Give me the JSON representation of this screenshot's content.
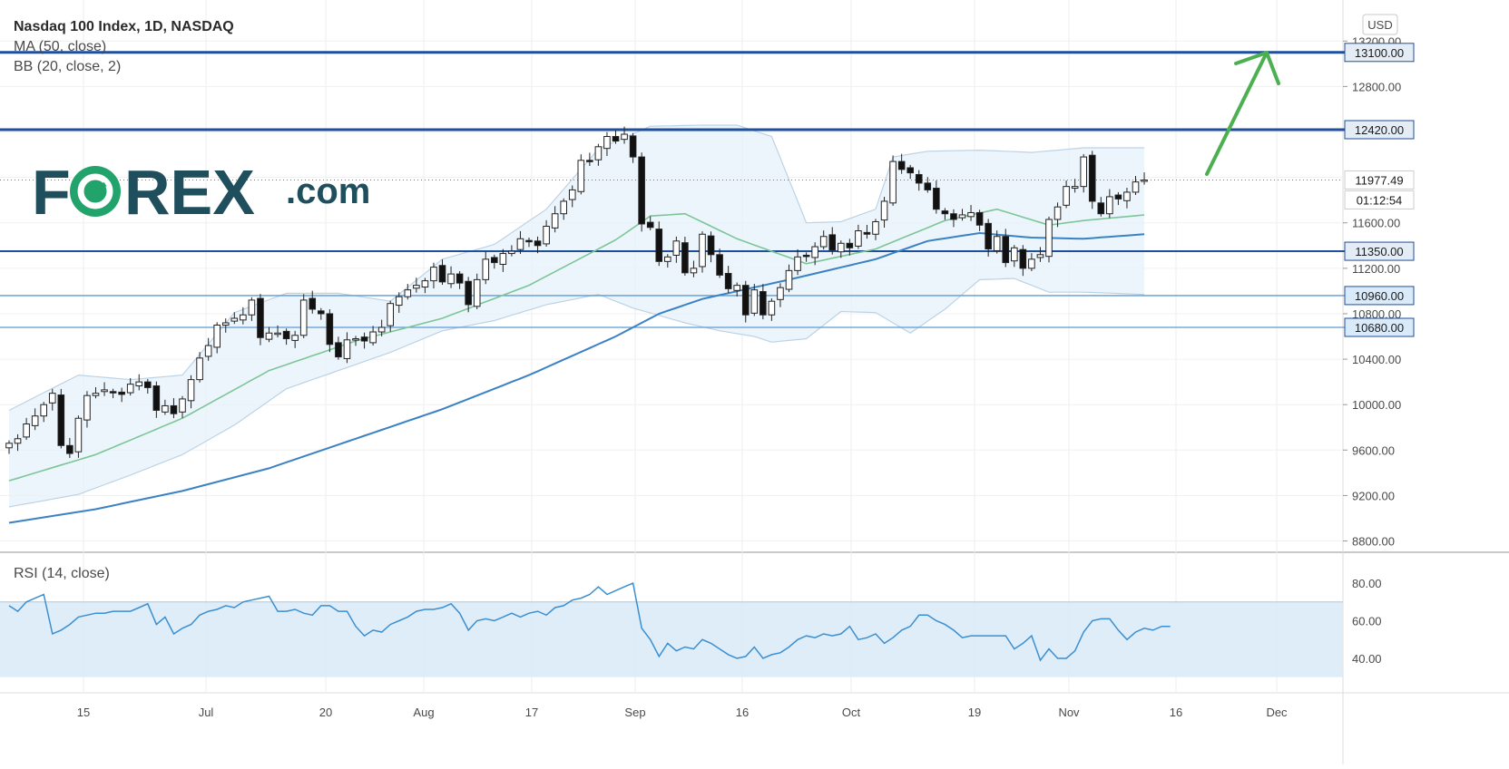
{
  "header": {
    "title": "Nasdaq 100 Index, 1D, NASDAQ",
    "indicator_ma": "MA (50, close)",
    "indicator_bb": "BB (20, close, 2)",
    "currency": "USD"
  },
  "logo": {
    "text": "FOREX.com"
  },
  "rsi": {
    "title": "RSI (14, close)",
    "yticks": [
      "80.00",
      "60.00",
      "40.00"
    ],
    "band": [
      30,
      70
    ],
    "values": [
      68,
      65,
      70,
      72,
      74,
      53,
      55,
      58,
      62,
      63,
      64,
      64,
      65,
      65,
      65,
      67,
      69,
      58,
      62,
      53,
      56,
      58,
      63,
      65,
      66,
      68,
      67,
      70,
      71,
      72,
      73,
      65,
      65,
      66,
      64,
      63,
      68,
      68,
      65,
      65,
      57,
      52,
      55,
      54,
      58,
      60,
      62,
      65,
      66,
      66,
      67,
      69,
      64,
      55,
      60,
      61,
      60,
      62,
      64,
      62,
      64,
      65,
      63,
      67,
      68,
      71,
      72,
      74,
      78,
      74,
      76,
      78,
      80,
      56,
      50,
      41,
      48,
      44,
      46,
      45,
      50,
      48,
      45,
      42,
      40,
      41,
      46,
      40,
      42,
      43,
      46,
      50,
      52,
      51,
      53,
      52,
      53,
      57,
      50,
      51,
      53,
      48,
      51,
      55,
      57,
      63,
      63,
      60,
      58,
      55,
      51,
      52,
      52,
      52,
      52,
      52,
      45,
      48,
      52,
      39,
      45,
      40,
      40,
      44,
      54,
      60,
      61,
      61,
      55,
      50,
      54,
      56,
      55,
      57,
      57
    ]
  },
  "chart_data": {
    "type": "candlestick",
    "title": "Nasdaq 100 Index, 1D, NASDAQ",
    "ylim": [
      8700,
      13350
    ],
    "yticks": [
      "13200.00",
      "12800.00",
      "12420.00",
      "11977.49",
      "11600.00",
      "11350.00",
      "11200.00",
      "10960.00",
      "10800.00",
      "10680.00",
      "10400.00",
      "10000.00",
      "9600.00",
      "9200.00",
      "8800.00"
    ],
    "xticks": [
      "15",
      "Jul",
      "20",
      "Aug",
      "17",
      "Sep",
      "16",
      "Oct",
      "19",
      "Nov",
      "16",
      "Dec"
    ],
    "last_price": "11977.49",
    "countdown": "01:12:54",
    "levels": [
      {
        "label": "13100.00",
        "value": 13100,
        "weight": "heavy"
      },
      {
        "label": "12420.00",
        "value": 12420,
        "weight": "heavy"
      },
      {
        "label": "11350.00",
        "value": 11350,
        "weight": "medium"
      },
      {
        "label": "10960.00",
        "value": 10960,
        "weight": "light"
      },
      {
        "label": "10680.00",
        "value": 10680,
        "weight": "light"
      }
    ],
    "close": [
      9660,
      9700,
      9830,
      9900,
      10000,
      10100,
      9640,
      9570,
      9880,
      10080,
      10100,
      10130,
      10110,
      10090,
      10180,
      10200,
      10150,
      9950,
      9990,
      9920,
      10050,
      10220,
      10410,
      10520,
      10700,
      10720,
      10760,
      10790,
      10920,
      10590,
      10630,
      10630,
      10580,
      10610,
      10920,
      10840,
      10800,
      10530,
      10420,
      10570,
      10580,
      10560,
      10640,
      10680,
      10890,
      10950,
      11010,
      11050,
      11090,
      11210,
      11080,
      11150,
      11070,
      10880,
      11100,
      11280,
      11250,
      11330,
      11350,
      11460,
      11440,
      11400,
      11570,
      11680,
      11790,
      11890,
      12150,
      12140,
      12270,
      12360,
      12320,
      12380,
      12180,
      11590,
      11560,
      11260,
      11300,
      11440,
      11160,
      11200,
      11500,
      11320,
      11140,
      11020,
      11050,
      10790,
      11010,
      10790,
      10910,
      11030,
      11180,
      11300,
      11310,
      11390,
      11480,
      11360,
      11420,
      11380,
      11530,
      11500,
      11610,
      11790,
      12140,
      12070,
      12040,
      11950,
      11890,
      11720,
      11680,
      11630,
      11670,
      11690,
      11580,
      11370,
      11480,
      11250,
      11380,
      11200,
      11280,
      11320,
      11630,
      11740,
      11920,
      11920,
      12180,
      11790,
      11680,
      11830,
      11810,
      11870,
      11960,
      11977
    ],
    "ma50_points": [
      [
        0,
        8960
      ],
      [
        10,
        9080
      ],
      [
        20,
        9240
      ],
      [
        30,
        9440
      ],
      [
        40,
        9700
      ],
      [
        50,
        9960
      ],
      [
        60,
        10260
      ],
      [
        70,
        10600
      ],
      [
        75,
        10800
      ],
      [
        80,
        10930
      ],
      [
        90,
        11100
      ],
      [
        100,
        11280
      ],
      [
        106,
        11440
      ],
      [
        112,
        11510
      ],
      [
        118,
        11470
      ],
      [
        124,
        11460
      ],
      [
        131,
        11500
      ]
    ],
    "ma20_points": [
      [
        0,
        9330
      ],
      [
        10,
        9560
      ],
      [
        20,
        9880
      ],
      [
        30,
        10300
      ],
      [
        40,
        10560
      ],
      [
        50,
        10760
      ],
      [
        60,
        11050
      ],
      [
        70,
        11450
      ],
      [
        74,
        11660
      ],
      [
        78,
        11680
      ],
      [
        84,
        11460
      ],
      [
        92,
        11240
      ],
      [
        100,
        11370
      ],
      [
        108,
        11620
      ],
      [
        114,
        11720
      ],
      [
        120,
        11580
      ],
      [
        124,
        11620
      ],
      [
        131,
        11670
      ]
    ],
    "bb_upper": [
      [
        0,
        9950
      ],
      [
        8,
        10260
      ],
      [
        14,
        10220
      ],
      [
        20,
        10260
      ],
      [
        26,
        10810
      ],
      [
        32,
        10980
      ],
      [
        38,
        10980
      ],
      [
        44,
        10910
      ],
      [
        50,
        11280
      ],
      [
        56,
        11410
      ],
      [
        62,
        11720
      ],
      [
        68,
        12250
      ],
      [
        74,
        12450
      ],
      [
        80,
        12460
      ],
      [
        84,
        12460
      ],
      [
        88,
        12360
      ],
      [
        92,
        11600
      ],
      [
        96,
        11610
      ],
      [
        100,
        11720
      ],
      [
        102,
        12180
      ],
      [
        106,
        12230
      ],
      [
        112,
        12240
      ],
      [
        118,
        12220
      ],
      [
        124,
        12260
      ],
      [
        131,
        12260
      ]
    ],
    "bb_lower": [
      [
        0,
        9100
      ],
      [
        8,
        9210
      ],
      [
        14,
        9380
      ],
      [
        20,
        9560
      ],
      [
        26,
        9820
      ],
      [
        32,
        10140
      ],
      [
        38,
        10300
      ],
      [
        44,
        10460
      ],
      [
        50,
        10650
      ],
      [
        56,
        10740
      ],
      [
        62,
        10880
      ],
      [
        68,
        10970
      ],
      [
        72,
        10850
      ],
      [
        78,
        10720
      ],
      [
        82,
        10650
      ],
      [
        86,
        10600
      ],
      [
        88,
        10550
      ],
      [
        92,
        10580
      ],
      [
        96,
        10820
      ],
      [
        100,
        10810
      ],
      [
        104,
        10630
      ],
      [
        108,
        10840
      ],
      [
        112,
        11100
      ],
      [
        116,
        11110
      ],
      [
        120,
        10990
      ],
      [
        124,
        10990
      ],
      [
        131,
        10970
      ]
    ],
    "annotation": "green arrow pointing up toward 13100.00"
  }
}
